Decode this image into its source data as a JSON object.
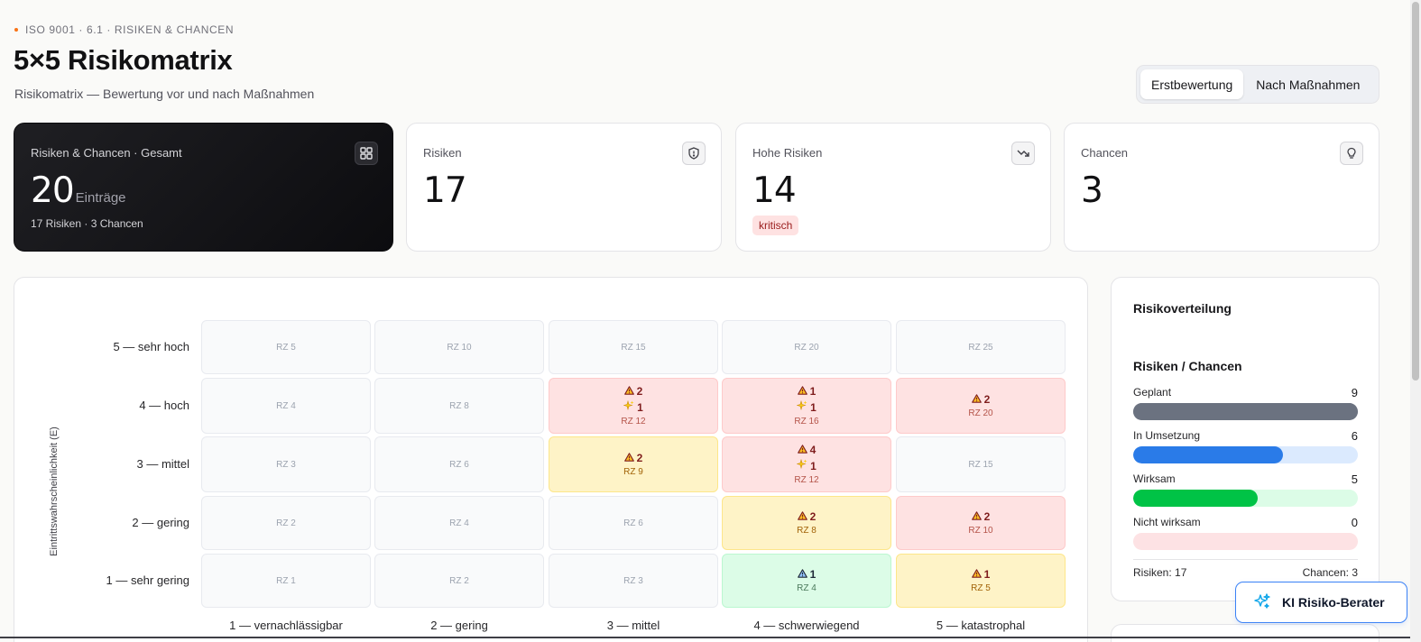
{
  "header": {
    "eyebrow": "ISO 9001 · 6.1 · RISIKEN & CHANCEN",
    "title": "5×5 Risikomatrix",
    "subtitle": "Risikomatrix — Bewertung vor und nach Maßnahmen"
  },
  "view_toggle": {
    "options": [
      "Erstbewertung",
      "Nach Maßnahmen"
    ],
    "selected": "Erstbewertung"
  },
  "stats": {
    "total": {
      "label": "Risiken & Chancen · Gesamt",
      "value": "20",
      "unit": "Einträge",
      "footnote": "17 Risiken · 3 Chancen",
      "icon": "grid-icon"
    },
    "risks": {
      "label": "Risiken",
      "value": "17",
      "icon": "shield-alert-icon"
    },
    "high": {
      "label": "Hohe Risiken",
      "value": "14",
      "badge": "kritisch",
      "icon": "trending-down-icon"
    },
    "chances": {
      "label": "Chancen",
      "value": "3",
      "icon": "lightbulb-icon"
    }
  },
  "matrix": {
    "y_axis_label": "Eintrittswahrscheinlichkeit (E)",
    "rows": [
      "5 — sehr hoch",
      "4 — hoch",
      "3 — mittel",
      "2 — gering",
      "1 — sehr gering"
    ],
    "columns": [
      "1 — vernachlässigbar",
      "2 — gering",
      "3 — mittel",
      "4 — schwerwiegend",
      "5 — katastrophal"
    ],
    "cells": [
      [
        {
          "rz": "RZ 5"
        },
        {
          "rz": "RZ 10"
        },
        {
          "rz": "RZ 15"
        },
        {
          "rz": "RZ 20"
        },
        {
          "rz": "RZ 25"
        }
      ],
      [
        {
          "rz": "RZ 4"
        },
        {
          "rz": "RZ 8"
        },
        {
          "rz": "RZ 12",
          "level": "red",
          "risks": "2",
          "chances": "1"
        },
        {
          "rz": "RZ 16",
          "level": "red",
          "risks": "1",
          "chances": "1"
        },
        {
          "rz": "RZ 20",
          "level": "red",
          "risks": "2"
        }
      ],
      [
        {
          "rz": "RZ 3"
        },
        {
          "rz": "RZ 6"
        },
        {
          "rz": "RZ 9",
          "level": "yellow",
          "risks": "2"
        },
        {
          "rz": "RZ 12",
          "level": "red",
          "risks": "4",
          "chances": "1"
        },
        {
          "rz": "RZ 15"
        }
      ],
      [
        {
          "rz": "RZ 2"
        },
        {
          "rz": "RZ 4"
        },
        {
          "rz": "RZ 6"
        },
        {
          "rz": "RZ 8",
          "level": "yellow",
          "risks": "2"
        },
        {
          "rz": "RZ 10",
          "level": "red",
          "risks": "2"
        }
      ],
      [
        {
          "rz": "RZ 1"
        },
        {
          "rz": "RZ 2"
        },
        {
          "rz": "RZ 3"
        },
        {
          "rz": "RZ 4",
          "level": "green",
          "risks": "1"
        },
        {
          "rz": "RZ 5",
          "level": "yellow",
          "risks": "1"
        }
      ]
    ],
    "icons": {
      "risk": "warning-triangle-icon",
      "chance": "sparkles-icon"
    }
  },
  "distribution": {
    "title": "Risikoverteilung",
    "subtitle": "Risiken / Chancen",
    "items": [
      {
        "label": "Geplant",
        "value": "9",
        "fraction": 1.0,
        "fill": "#6b7280",
        "track": "#6b7280"
      },
      {
        "label": "In Umsetzung",
        "value": "6",
        "fraction": 0.667,
        "fill": "#2a7be8",
        "track": "#dbeafe"
      },
      {
        "label": "Wirksam",
        "value": "5",
        "fraction": 0.556,
        "fill": "#00c346",
        "track": "#dcfce7"
      },
      {
        "label": "Nicht wirksam",
        "value": "0",
        "fraction": 0,
        "fill": "#f87171",
        "track": "#fde2e4"
      }
    ],
    "footer_left": "Risiken: 17",
    "footer_right": "Chancen: 3"
  },
  "assistant_button": {
    "label": "KI Risiko-Berater",
    "icon": "sparkles-icon"
  }
}
